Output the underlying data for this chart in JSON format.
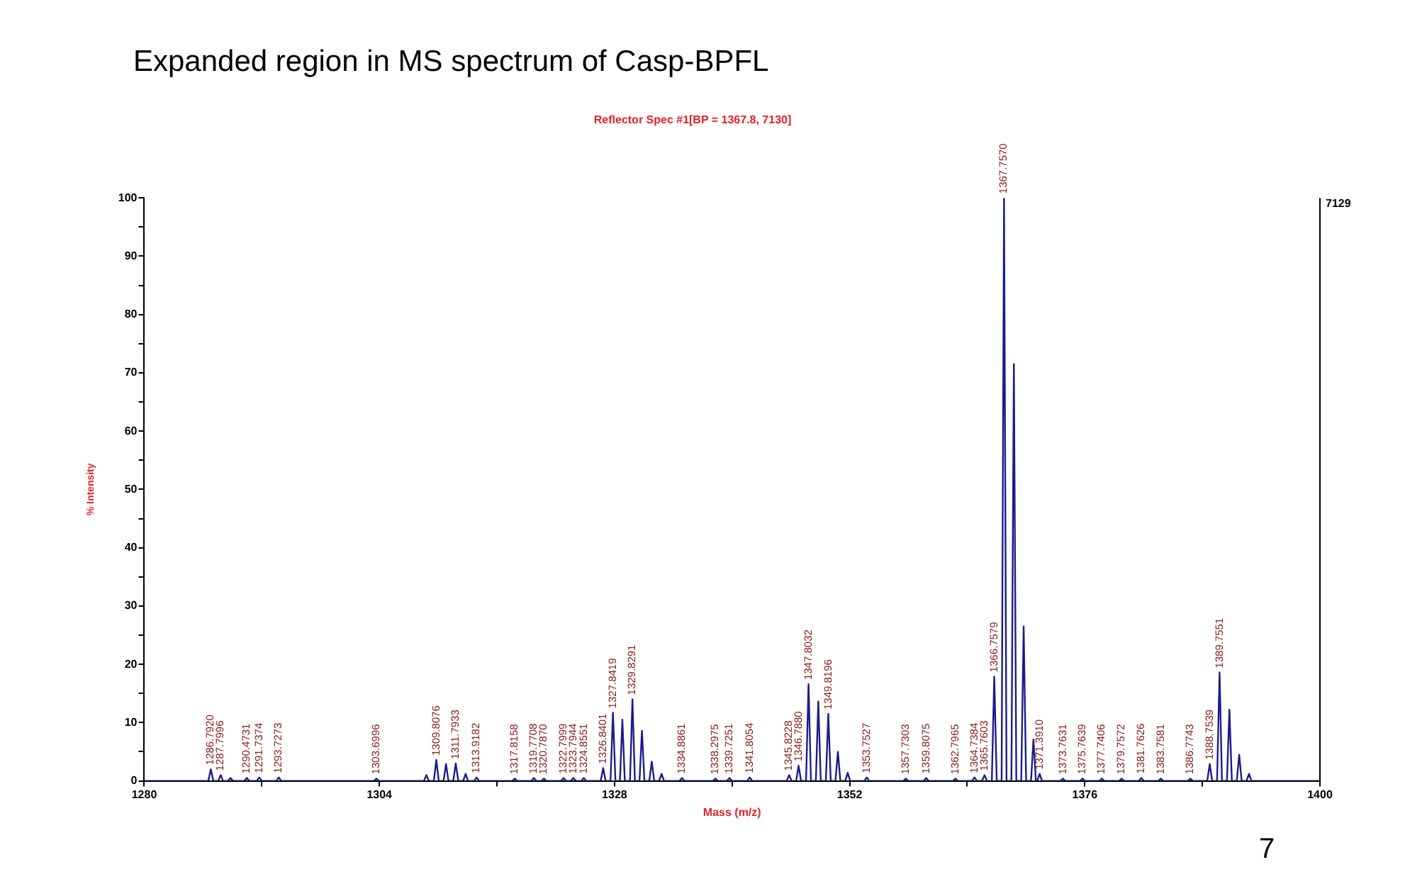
{
  "chart_data": {
    "type": "line",
    "title": "Expanded region in MS spectrum of Casp-BPFL",
    "subtitle": "Reflector Spec #1[BP = 1367.8, 7130]",
    "xlabel": "Mass (m/z)",
    "ylabel": "% Intensity",
    "xlim": [
      1280,
      1400
    ],
    "xticks": [
      1280,
      {
        "value": 1292,
        "label": null
      },
      1304,
      {
        "value": 1316,
        "label": null
      },
      1328,
      {
        "value": 1340,
        "label": null
      },
      1352,
      {
        "value": 1364,
        "label": null
      },
      1376,
      {
        "value": 1388,
        "label": null
      },
      1400
    ],
    "ylim": [
      0,
      100
    ],
    "yticks": [
      0,
      {
        "value": 5,
        "label": null
      },
      10,
      {
        "value": 15,
        "label": null
      },
      20,
      {
        "value": 25,
        "label": null
      },
      30,
      {
        "value": 35,
        "label": null
      },
      40,
      {
        "value": 45,
        "label": null
      },
      50,
      {
        "value": 55,
        "label": null
      },
      60,
      {
        "value": 65,
        "label": null
      },
      70,
      {
        "value": 75,
        "label": null
      },
      80,
      {
        "value": 85,
        "label": null
      },
      90,
      {
        "value": 95,
        "label": null
      },
      100
    ],
    "grid": false,
    "legend": false,
    "marker": "none",
    "line_style": "solid",
    "series": [
      {
        "color": "#1c1c8c",
        "x": [
          1280,
          1286.54,
          1286.792,
          1287.05,
          1287.55,
          1287.7996,
          1288.05,
          1288.55,
          1288.8,
          1289.05,
          1290.22,
          1290.4731,
          1290.72,
          1291.49,
          1291.7374,
          1291.99,
          1293.48,
          1293.7273,
          1293.98,
          1303.45,
          1303.6996,
          1303.95,
          1308.55,
          1308.8,
          1309.05,
          1309.56,
          1309.8076,
          1310.06,
          1310.55,
          1310.8,
          1311.05,
          1311.54,
          1311.7933,
          1312.05,
          1312.55,
          1312.8,
          1313.05,
          1313.67,
          1313.9182,
          1314.17,
          1317.57,
          1317.8158,
          1318.07,
          1319.52,
          1319.7708,
          1320.02,
          1320.54,
          1320.787,
          1321.04,
          1322.55,
          1322.7999,
          1323.05,
          1323.54,
          1323.7944,
          1324.05,
          1324.61,
          1324.8551,
          1325.11,
          1326.59,
          1326.8401,
          1327.09,
          1327.59,
          1327.8419,
          1328.09,
          1328.55,
          1328.8,
          1329.05,
          1329.58,
          1329.8291,
          1330.08,
          1330.55,
          1330.8,
          1331.05,
          1331.55,
          1331.8,
          1332.05,
          1332.55,
          1332.8,
          1333.05,
          1334.64,
          1334.8861,
          1335.14,
          1338.05,
          1338.2975,
          1338.55,
          1339.48,
          1339.7251,
          1339.98,
          1341.56,
          1341.8054,
          1342.06,
          1345.57,
          1345.8228,
          1346.07,
          1346.54,
          1346.788,
          1347.04,
          1347.55,
          1347.8032,
          1348.05,
          1348.55,
          1348.8,
          1349.05,
          1349.57,
          1349.8196,
          1350.07,
          1350.55,
          1350.8,
          1351.05,
          1351.55,
          1351.8,
          1352.05,
          1353.5,
          1353.7527,
          1354.0,
          1357.48,
          1357.7303,
          1357.98,
          1359.56,
          1359.8075,
          1360.06,
          1362.55,
          1362.7965,
          1363.05,
          1364.49,
          1364.7384,
          1364.99,
          1365.51,
          1365.7603,
          1366.01,
          1366.51,
          1366.7579,
          1367.01,
          1367.51,
          1367.757,
          1368.01,
          1368.51,
          1368.76,
          1369.01,
          1369.51,
          1369.76,
          1370.01,
          1370.51,
          1370.76,
          1371.01,
          1371.14,
          1371.391,
          1371.64,
          1373.51,
          1373.7631,
          1374.01,
          1375.51,
          1375.7639,
          1376.01,
          1377.49,
          1377.7406,
          1377.99,
          1379.51,
          1379.7572,
          1380.01,
          1381.51,
          1381.7626,
          1382.01,
          1383.51,
          1383.7581,
          1384.01,
          1386.52,
          1386.7743,
          1387.02,
          1388.5,
          1388.7539,
          1389.0,
          1389.5,
          1389.7551,
          1390.0,
          1390.51,
          1390.76,
          1391.01,
          1391.51,
          1391.76,
          1392.01,
          1392.51,
          1392.76,
          1393.01,
          1400
        ],
        "values": [
          0,
          0,
          2.0,
          0,
          0,
          1.0,
          0,
          0,
          0.5,
          0,
          0,
          0.5,
          0,
          0,
          0.6,
          0,
          0,
          0.6,
          0,
          0,
          0.4,
          0,
          0,
          1.0,
          0,
          0,
          3.6,
          0,
          0,
          2.9,
          0,
          0,
          3.0,
          0,
          0,
          1.2,
          0,
          0,
          0.6,
          0,
          0,
          0.4,
          0,
          0,
          0.5,
          0,
          0,
          0.4,
          0,
          0,
          0.5,
          0,
          0,
          0.5,
          0,
          0,
          0.5,
          0,
          0,
          2.2,
          0,
          0,
          11.7,
          0,
          0,
          10.5,
          0,
          0,
          14.0,
          0,
          0,
          8.6,
          0,
          0,
          3.3,
          0,
          0,
          1.2,
          0,
          0,
          0.5,
          0,
          0,
          0.4,
          0,
          0,
          0.5,
          0,
          0,
          0.6,
          0,
          0,
          1.0,
          0,
          0,
          2.6,
          0,
          0,
          16.6,
          0,
          0,
          13.6,
          0,
          0,
          11.5,
          0,
          0,
          5.0,
          0,
          0,
          1.4,
          0,
          0,
          0.6,
          0,
          0,
          0.4,
          0,
          0,
          0.5,
          0,
          0,
          0.4,
          0,
          0,
          0.6,
          0,
          0,
          1.0,
          0,
          0,
          17.9,
          0,
          0,
          100,
          0,
          0,
          71.5,
          0,
          0,
          26.5,
          0,
          0,
          7.1,
          0,
          0,
          1.2,
          0,
          0,
          0.4,
          0,
          0,
          0.4,
          0,
          0,
          0.4,
          0,
          0,
          0.4,
          0,
          0,
          0.5,
          0,
          0,
          0.4,
          0,
          0,
          0.4,
          0,
          0,
          2.9,
          0,
          0,
          18.6,
          0,
          0,
          12.2,
          0,
          0,
          4.5,
          0,
          0,
          1.2,
          0,
          0
        ]
      }
    ],
    "annotations": [
      {
        "text": "1286.7920",
        "x": 1286.792,
        "y": 2.0
      },
      {
        "text": "1287.7996",
        "x": 1287.7996,
        "y": 1.0
      },
      {
        "text": "1290.4731",
        "x": 1290.4731,
        "y": 0.5
      },
      {
        "text": "1291.7374",
        "x": 1291.7374,
        "y": 0.6
      },
      {
        "text": "1293.7273",
        "x": 1293.7273,
        "y": 0.6
      },
      {
        "text": "1303.6996",
        "x": 1303.6996,
        "y": 0.4
      },
      {
        "text": "1309.8076",
        "x": 1309.8076,
        "y": 3.6
      },
      {
        "text": "1311.7933",
        "x": 1311.7933,
        "y": 3.0
      },
      {
        "text": "1313.9182",
        "x": 1313.9182,
        "y": 0.6
      },
      {
        "text": "1317.8158",
        "x": 1317.8158,
        "y": 0.4
      },
      {
        "text": "1319.7708",
        "x": 1319.7708,
        "y": 0.5
      },
      {
        "text": "1320.7870",
        "x": 1320.787,
        "y": 0.4
      },
      {
        "text": "1322.7999",
        "x": 1322.7999,
        "y": 0.5
      },
      {
        "text": "1323.7944",
        "x": 1323.7944,
        "y": 0.5
      },
      {
        "text": "1324.8551",
        "x": 1324.8551,
        "y": 0.5
      },
      {
        "text": "1326.8401",
        "x": 1326.8401,
        "y": 2.2
      },
      {
        "text": "1327.8419",
        "x": 1327.8419,
        "y": 11.7
      },
      {
        "text": "1329.8291",
        "x": 1329.8291,
        "y": 14.0
      },
      {
        "text": "1334.8861",
        "x": 1334.8861,
        "y": 0.5
      },
      {
        "text": "1338.2975",
        "x": 1338.2975,
        "y": 0.4
      },
      {
        "text": "1339.7251",
        "x": 1339.7251,
        "y": 0.5
      },
      {
        "text": "1341.8054",
        "x": 1341.8054,
        "y": 0.6
      },
      {
        "text": "1345.8228",
        "x": 1345.8228,
        "y": 1.0
      },
      {
        "text": "1346.7880",
        "x": 1346.788,
        "y": 2.6
      },
      {
        "text": "1347.8032",
        "x": 1347.8032,
        "y": 16.6
      },
      {
        "text": "1349.8196",
        "x": 1349.8196,
        "y": 11.5
      },
      {
        "text": "1353.7527",
        "x": 1353.7527,
        "y": 0.6
      },
      {
        "text": "1357.7303",
        "x": 1357.7303,
        "y": 0.4
      },
      {
        "text": "1359.8075",
        "x": 1359.8075,
        "y": 0.5
      },
      {
        "text": "1362.7965",
        "x": 1362.7965,
        "y": 0.4
      },
      {
        "text": "1364.7384",
        "x": 1364.7384,
        "y": 0.6
      },
      {
        "text": "1365.7603",
        "x": 1365.7603,
        "y": 1.0
      },
      {
        "text": "1366.7579",
        "x": 1366.7579,
        "y": 17.9
      },
      {
        "text": "1367.7570",
        "x": 1367.757,
        "y": 100
      },
      {
        "text": "1371.3910",
        "x": 1371.391,
        "y": 1.2
      },
      {
        "text": "1373.7631",
        "x": 1373.7631,
        "y": 0.4
      },
      {
        "text": "1375.7639",
        "x": 1375.7639,
        "y": 0.4
      },
      {
        "text": "1377.7406",
        "x": 1377.7406,
        "y": 0.4
      },
      {
        "text": "1379.7572",
        "x": 1379.7572,
        "y": 0.4
      },
      {
        "text": "1381.7626",
        "x": 1381.7626,
        "y": 0.5
      },
      {
        "text": "1383.7581",
        "x": 1383.7581,
        "y": 0.4
      },
      {
        "text": "1386.7743",
        "x": 1386.7743,
        "y": 0.4
      },
      {
        "text": "1388.7539",
        "x": 1388.7539,
        "y": 2.9
      },
      {
        "text": "1389.7551",
        "x": 1389.7551,
        "y": 18.6
      },
      "7129",
      "7"
    ]
  }
}
